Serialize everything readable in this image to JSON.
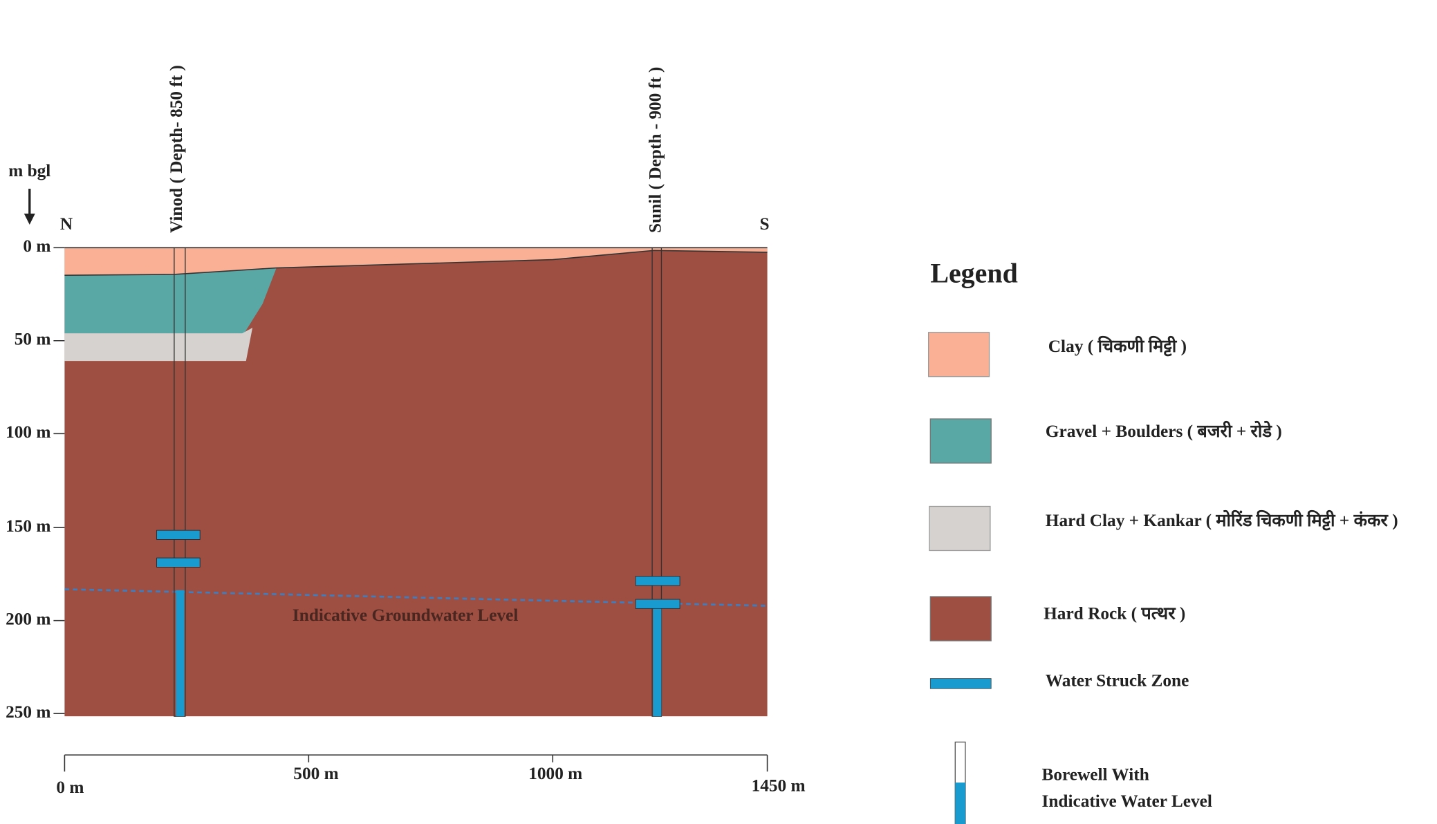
{
  "header": {
    "unit": "m bgl",
    "north": "N",
    "south": "S"
  },
  "depth_labels": [
    "0 m",
    "50 m",
    "100 m",
    "150 m",
    "200 m",
    "250 m"
  ],
  "distance_labels": [
    "0 m",
    "500 m",
    "1000 m",
    "1450 m"
  ],
  "boreholes": [
    {
      "label": "Vinod ( Depth- 850 ft )"
    },
    {
      "label": "Sunil ( Depth - 900 ft )"
    }
  ],
  "annotation": "Indicative Groundwater Level",
  "legend": {
    "title": "Legend",
    "items": [
      "Clay ( चिकणी मिट्टी )",
      "Gravel + Boulders ( बजरी + रोडे )",
      "Hard Clay + Kankar ( मोरिंड चिकणी मिट्टी + कंकर )",
      "Hard Rock ( पत्थर )",
      "Water Struck Zone"
    ],
    "borewell": [
      "Borewell With",
      "Indicative Water Level"
    ]
  }
}
